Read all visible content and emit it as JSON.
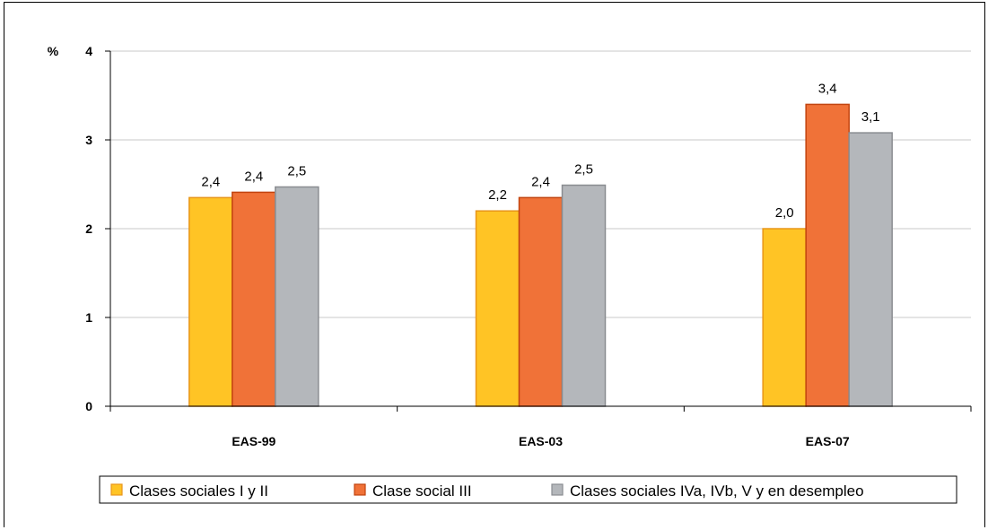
{
  "chart_data": {
    "type": "bar",
    "unit_label": "%",
    "categories": [
      "EAS-99",
      "EAS-03",
      "EAS-07"
    ],
    "series": [
      {
        "name": "Clases sociales I y II",
        "color": "#FFC425",
        "edge": "#E8961A",
        "values": [
          2.35,
          2.2,
          2.0
        ],
        "labels": [
          "2,4",
          "2,2",
          "2,0"
        ]
      },
      {
        "name": "Clase social III",
        "color": "#F07238",
        "edge": "#C2440F",
        "values": [
          2.41,
          2.35,
          3.4
        ],
        "labels": [
          "2,4",
          "2,4",
          "3,4"
        ]
      },
      {
        "name": "Clases sociales IVa, IVb, V y en desempleo",
        "color": "#B4B7BB",
        "edge": "#8A8D91",
        "values": [
          2.47,
          2.49,
          3.08
        ],
        "labels": [
          "2,5",
          "2,5",
          "3,1"
        ]
      }
    ],
    "ylim": [
      0,
      4
    ],
    "yticks": [
      "0",
      "1",
      "2",
      "3",
      "4"
    ],
    "grid": true,
    "legend_position": "bottom"
  }
}
